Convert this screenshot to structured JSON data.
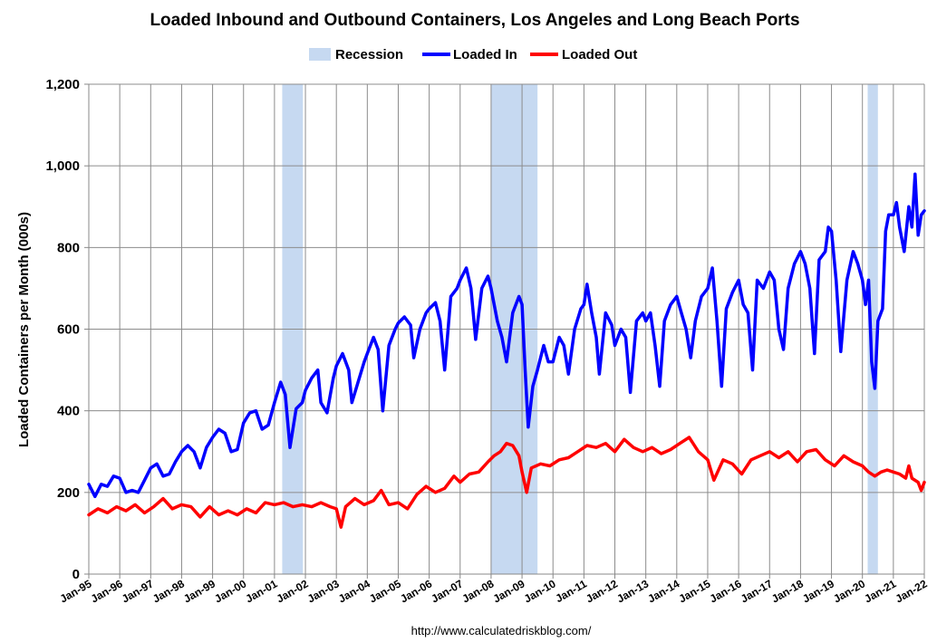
{
  "chart_data": {
    "type": "line",
    "title": "Loaded Inbound and Outbound Containers, Los Angeles and Long Beach Ports",
    "ylabel": "Loaded Containers per Month (000s)",
    "xlabel": "",
    "source": "http://www.calculatedriskblog.com/",
    "ylim": [
      0,
      1200
    ],
    "yticks": [
      0,
      200,
      400,
      600,
      800,
      1000,
      1200
    ],
    "ytick_labels": [
      "0",
      "200",
      "400",
      "600",
      "800",
      "1,000",
      "1,200"
    ],
    "xlim": [
      1995.0,
      2022.0
    ],
    "xtick_labels": [
      "Jan-95",
      "Jan-96",
      "Jan-97",
      "Jan-98",
      "Jan-99",
      "Jan-00",
      "Jan-01",
      "Jan-02",
      "Jan-03",
      "Jan-04",
      "Jan-05",
      "Jan-06",
      "Jan-07",
      "Jan-08",
      "Jan-09",
      "Jan-10",
      "Jan-11",
      "Jan-12",
      "Jan-13",
      "Jan-14",
      "Jan-15",
      "Jan-16",
      "Jan-17",
      "Jan-18",
      "Jan-19",
      "Jan-20",
      "Jan-21",
      "Jan-22"
    ],
    "legend": {
      "position": "top-center",
      "entries": [
        {
          "label": "Recession",
          "color": "#c6d9f1",
          "kind": "area"
        },
        {
          "label": "Loaded In",
          "color": "#0000ff",
          "kind": "line"
        },
        {
          "label": "Loaded Out",
          "color": "#ff0000",
          "kind": "line"
        }
      ]
    },
    "recessions": [
      {
        "start": 2001.25,
        "end": 2001.92
      },
      {
        "start": 2008.0,
        "end": 2009.5
      },
      {
        "start": 2020.17,
        "end": 2020.5
      }
    ],
    "series": [
      {
        "name": "Loaded In",
        "color": "#0000ff",
        "points": [
          [
            1995.0,
            220
          ],
          [
            1995.2,
            190
          ],
          [
            1995.4,
            220
          ],
          [
            1995.6,
            215
          ],
          [
            1995.8,
            240
          ],
          [
            1996.0,
            235
          ],
          [
            1996.2,
            200
          ],
          [
            1996.4,
            205
          ],
          [
            1996.6,
            200
          ],
          [
            1996.8,
            230
          ],
          [
            1997.0,
            260
          ],
          [
            1997.2,
            270
          ],
          [
            1997.4,
            240
          ],
          [
            1997.6,
            245
          ],
          [
            1997.8,
            275
          ],
          [
            1998.0,
            300
          ],
          [
            1998.2,
            315
          ],
          [
            1998.4,
            300
          ],
          [
            1998.6,
            260
          ],
          [
            1998.8,
            310
          ],
          [
            1999.0,
            335
          ],
          [
            1999.2,
            355
          ],
          [
            1999.4,
            345
          ],
          [
            1999.6,
            300
          ],
          [
            1999.8,
            305
          ],
          [
            2000.0,
            370
          ],
          [
            2000.2,
            395
          ],
          [
            2000.4,
            400
          ],
          [
            2000.6,
            355
          ],
          [
            2000.8,
            365
          ],
          [
            2001.0,
            420
          ],
          [
            2001.2,
            470
          ],
          [
            2001.35,
            440
          ],
          [
            2001.5,
            310
          ],
          [
            2001.7,
            405
          ],
          [
            2001.9,
            420
          ],
          [
            2002.0,
            450
          ],
          [
            2002.2,
            480
          ],
          [
            2002.4,
            500
          ],
          [
            2002.5,
            420
          ],
          [
            2002.7,
            395
          ],
          [
            2002.9,
            480
          ],
          [
            2003.0,
            510
          ],
          [
            2003.2,
            540
          ],
          [
            2003.4,
            500
          ],
          [
            2003.5,
            420
          ],
          [
            2003.7,
            470
          ],
          [
            2003.9,
            520
          ],
          [
            2004.0,
            540
          ],
          [
            2004.2,
            580
          ],
          [
            2004.35,
            550
          ],
          [
            2004.5,
            400
          ],
          [
            2004.7,
            560
          ],
          [
            2004.9,
            600
          ],
          [
            2005.0,
            615
          ],
          [
            2005.2,
            630
          ],
          [
            2005.4,
            610
          ],
          [
            2005.5,
            530
          ],
          [
            2005.7,
            600
          ],
          [
            2005.9,
            640
          ],
          [
            2006.0,
            650
          ],
          [
            2006.2,
            665
          ],
          [
            2006.35,
            620
          ],
          [
            2006.5,
            500
          ],
          [
            2006.7,
            680
          ],
          [
            2006.9,
            700
          ],
          [
            2007.0,
            720
          ],
          [
            2007.2,
            750
          ],
          [
            2007.35,
            700
          ],
          [
            2007.5,
            575
          ],
          [
            2007.7,
            700
          ],
          [
            2007.9,
            730
          ],
          [
            2008.0,
            700
          ],
          [
            2008.2,
            620
          ],
          [
            2008.35,
            580
          ],
          [
            2008.5,
            520
          ],
          [
            2008.7,
            640
          ],
          [
            2008.9,
            680
          ],
          [
            2009.0,
            660
          ],
          [
            2009.1,
            500
          ],
          [
            2009.2,
            360
          ],
          [
            2009.35,
            460
          ],
          [
            2009.5,
            500
          ],
          [
            2009.7,
            560
          ],
          [
            2009.85,
            520
          ],
          [
            2010.0,
            520
          ],
          [
            2010.2,
            580
          ],
          [
            2010.35,
            560
          ],
          [
            2010.5,
            490
          ],
          [
            2010.7,
            600
          ],
          [
            2010.9,
            650
          ],
          [
            2011.0,
            660
          ],
          [
            2011.1,
            710
          ],
          [
            2011.25,
            640
          ],
          [
            2011.4,
            580
          ],
          [
            2011.5,
            490
          ],
          [
            2011.7,
            640
          ],
          [
            2011.9,
            610
          ],
          [
            2012.0,
            560
          ],
          [
            2012.2,
            600
          ],
          [
            2012.35,
            580
          ],
          [
            2012.5,
            445
          ],
          [
            2012.7,
            620
          ],
          [
            2012.9,
            640
          ],
          [
            2013.0,
            620
          ],
          [
            2013.15,
            640
          ],
          [
            2013.3,
            560
          ],
          [
            2013.45,
            460
          ],
          [
            2013.6,
            620
          ],
          [
            2013.8,
            660
          ],
          [
            2014.0,
            680
          ],
          [
            2014.15,
            640
          ],
          [
            2014.3,
            600
          ],
          [
            2014.45,
            530
          ],
          [
            2014.6,
            620
          ],
          [
            2014.8,
            680
          ],
          [
            2015.0,
            700
          ],
          [
            2015.15,
            750
          ],
          [
            2015.3,
            620
          ],
          [
            2015.45,
            460
          ],
          [
            2015.6,
            650
          ],
          [
            2015.8,
            690
          ],
          [
            2016.0,
            720
          ],
          [
            2016.15,
            660
          ],
          [
            2016.3,
            640
          ],
          [
            2016.45,
            500
          ],
          [
            2016.6,
            720
          ],
          [
            2016.8,
            700
          ],
          [
            2017.0,
            740
          ],
          [
            2017.15,
            720
          ],
          [
            2017.3,
            600
          ],
          [
            2017.45,
            550
          ],
          [
            2017.6,
            700
          ],
          [
            2017.8,
            760
          ],
          [
            2018.0,
            790
          ],
          [
            2018.15,
            760
          ],
          [
            2018.3,
            700
          ],
          [
            2018.45,
            540
          ],
          [
            2018.6,
            770
          ],
          [
            2018.8,
            790
          ],
          [
            2018.9,
            850
          ],
          [
            2019.0,
            840
          ],
          [
            2019.15,
            720
          ],
          [
            2019.3,
            545
          ],
          [
            2019.5,
            720
          ],
          [
            2019.7,
            790
          ],
          [
            2019.85,
            760
          ],
          [
            2020.0,
            720
          ],
          [
            2020.1,
            660
          ],
          [
            2020.2,
            720
          ],
          [
            2020.3,
            520
          ],
          [
            2020.4,
            455
          ],
          [
            2020.5,
            620
          ],
          [
            2020.65,
            650
          ],
          [
            2020.75,
            840
          ],
          [
            2020.85,
            880
          ],
          [
            2021.0,
            880
          ],
          [
            2021.1,
            910
          ],
          [
            2021.2,
            850
          ],
          [
            2021.35,
            790
          ],
          [
            2021.5,
            900
          ],
          [
            2021.6,
            850
          ],
          [
            2021.7,
            980
          ],
          [
            2021.8,
            830
          ],
          [
            2021.9,
            880
          ],
          [
            2022.0,
            890
          ]
        ]
      },
      {
        "name": "Loaded Out",
        "color": "#ff0000",
        "points": [
          [
            1995.0,
            145
          ],
          [
            1995.3,
            160
          ],
          [
            1995.6,
            150
          ],
          [
            1995.9,
            165
          ],
          [
            1996.2,
            155
          ],
          [
            1996.5,
            170
          ],
          [
            1996.8,
            150
          ],
          [
            1997.1,
            165
          ],
          [
            1997.4,
            185
          ],
          [
            1997.7,
            160
          ],
          [
            1998.0,
            170
          ],
          [
            1998.3,
            165
          ],
          [
            1998.6,
            140
          ],
          [
            1998.9,
            165
          ],
          [
            1999.2,
            145
          ],
          [
            1999.5,
            155
          ],
          [
            1999.8,
            145
          ],
          [
            2000.1,
            160
          ],
          [
            2000.4,
            150
          ],
          [
            2000.7,
            175
          ],
          [
            2001.0,
            170
          ],
          [
            2001.3,
            175
          ],
          [
            2001.6,
            165
          ],
          [
            2001.9,
            170
          ],
          [
            2002.2,
            165
          ],
          [
            2002.5,
            175
          ],
          [
            2002.8,
            165
          ],
          [
            2003.0,
            160
          ],
          [
            2003.15,
            115
          ],
          [
            2003.3,
            165
          ],
          [
            2003.6,
            185
          ],
          [
            2003.9,
            170
          ],
          [
            2004.2,
            180
          ],
          [
            2004.45,
            205
          ],
          [
            2004.7,
            170
          ],
          [
            2005.0,
            175
          ],
          [
            2005.3,
            160
          ],
          [
            2005.6,
            195
          ],
          [
            2005.9,
            215
          ],
          [
            2006.2,
            200
          ],
          [
            2006.5,
            210
          ],
          [
            2006.8,
            240
          ],
          [
            2007.0,
            225
          ],
          [
            2007.3,
            245
          ],
          [
            2007.6,
            250
          ],
          [
            2007.9,
            275
          ],
          [
            2008.1,
            290
          ],
          [
            2008.3,
            300
          ],
          [
            2008.5,
            320
          ],
          [
            2008.7,
            315
          ],
          [
            2008.9,
            290
          ],
          [
            2009.0,
            250
          ],
          [
            2009.15,
            200
          ],
          [
            2009.3,
            260
          ],
          [
            2009.6,
            270
          ],
          [
            2009.9,
            265
          ],
          [
            2010.2,
            280
          ],
          [
            2010.5,
            285
          ],
          [
            2010.8,
            300
          ],
          [
            2011.1,
            315
          ],
          [
            2011.4,
            310
          ],
          [
            2011.7,
            320
          ],
          [
            2012.0,
            300
          ],
          [
            2012.3,
            330
          ],
          [
            2012.6,
            310
          ],
          [
            2012.9,
            300
          ],
          [
            2013.2,
            310
          ],
          [
            2013.5,
            295
          ],
          [
            2013.8,
            305
          ],
          [
            2014.1,
            320
          ],
          [
            2014.4,
            335
          ],
          [
            2014.7,
            300
          ],
          [
            2015.0,
            280
          ],
          [
            2015.2,
            230
          ],
          [
            2015.5,
            280
          ],
          [
            2015.8,
            270
          ],
          [
            2016.1,
            245
          ],
          [
            2016.4,
            280
          ],
          [
            2016.7,
            290
          ],
          [
            2017.0,
            300
          ],
          [
            2017.3,
            285
          ],
          [
            2017.6,
            300
          ],
          [
            2017.9,
            275
          ],
          [
            2018.2,
            300
          ],
          [
            2018.5,
            305
          ],
          [
            2018.8,
            280
          ],
          [
            2019.1,
            265
          ],
          [
            2019.4,
            290
          ],
          [
            2019.7,
            275
          ],
          [
            2020.0,
            265
          ],
          [
            2020.2,
            250
          ],
          [
            2020.4,
            240
          ],
          [
            2020.6,
            250
          ],
          [
            2020.8,
            255
          ],
          [
            2021.0,
            250
          ],
          [
            2021.2,
            245
          ],
          [
            2021.4,
            235
          ],
          [
            2021.5,
            265
          ],
          [
            2021.6,
            235
          ],
          [
            2021.8,
            225
          ],
          [
            2021.9,
            205
          ],
          [
            2022.0,
            225
          ]
        ]
      }
    ]
  }
}
